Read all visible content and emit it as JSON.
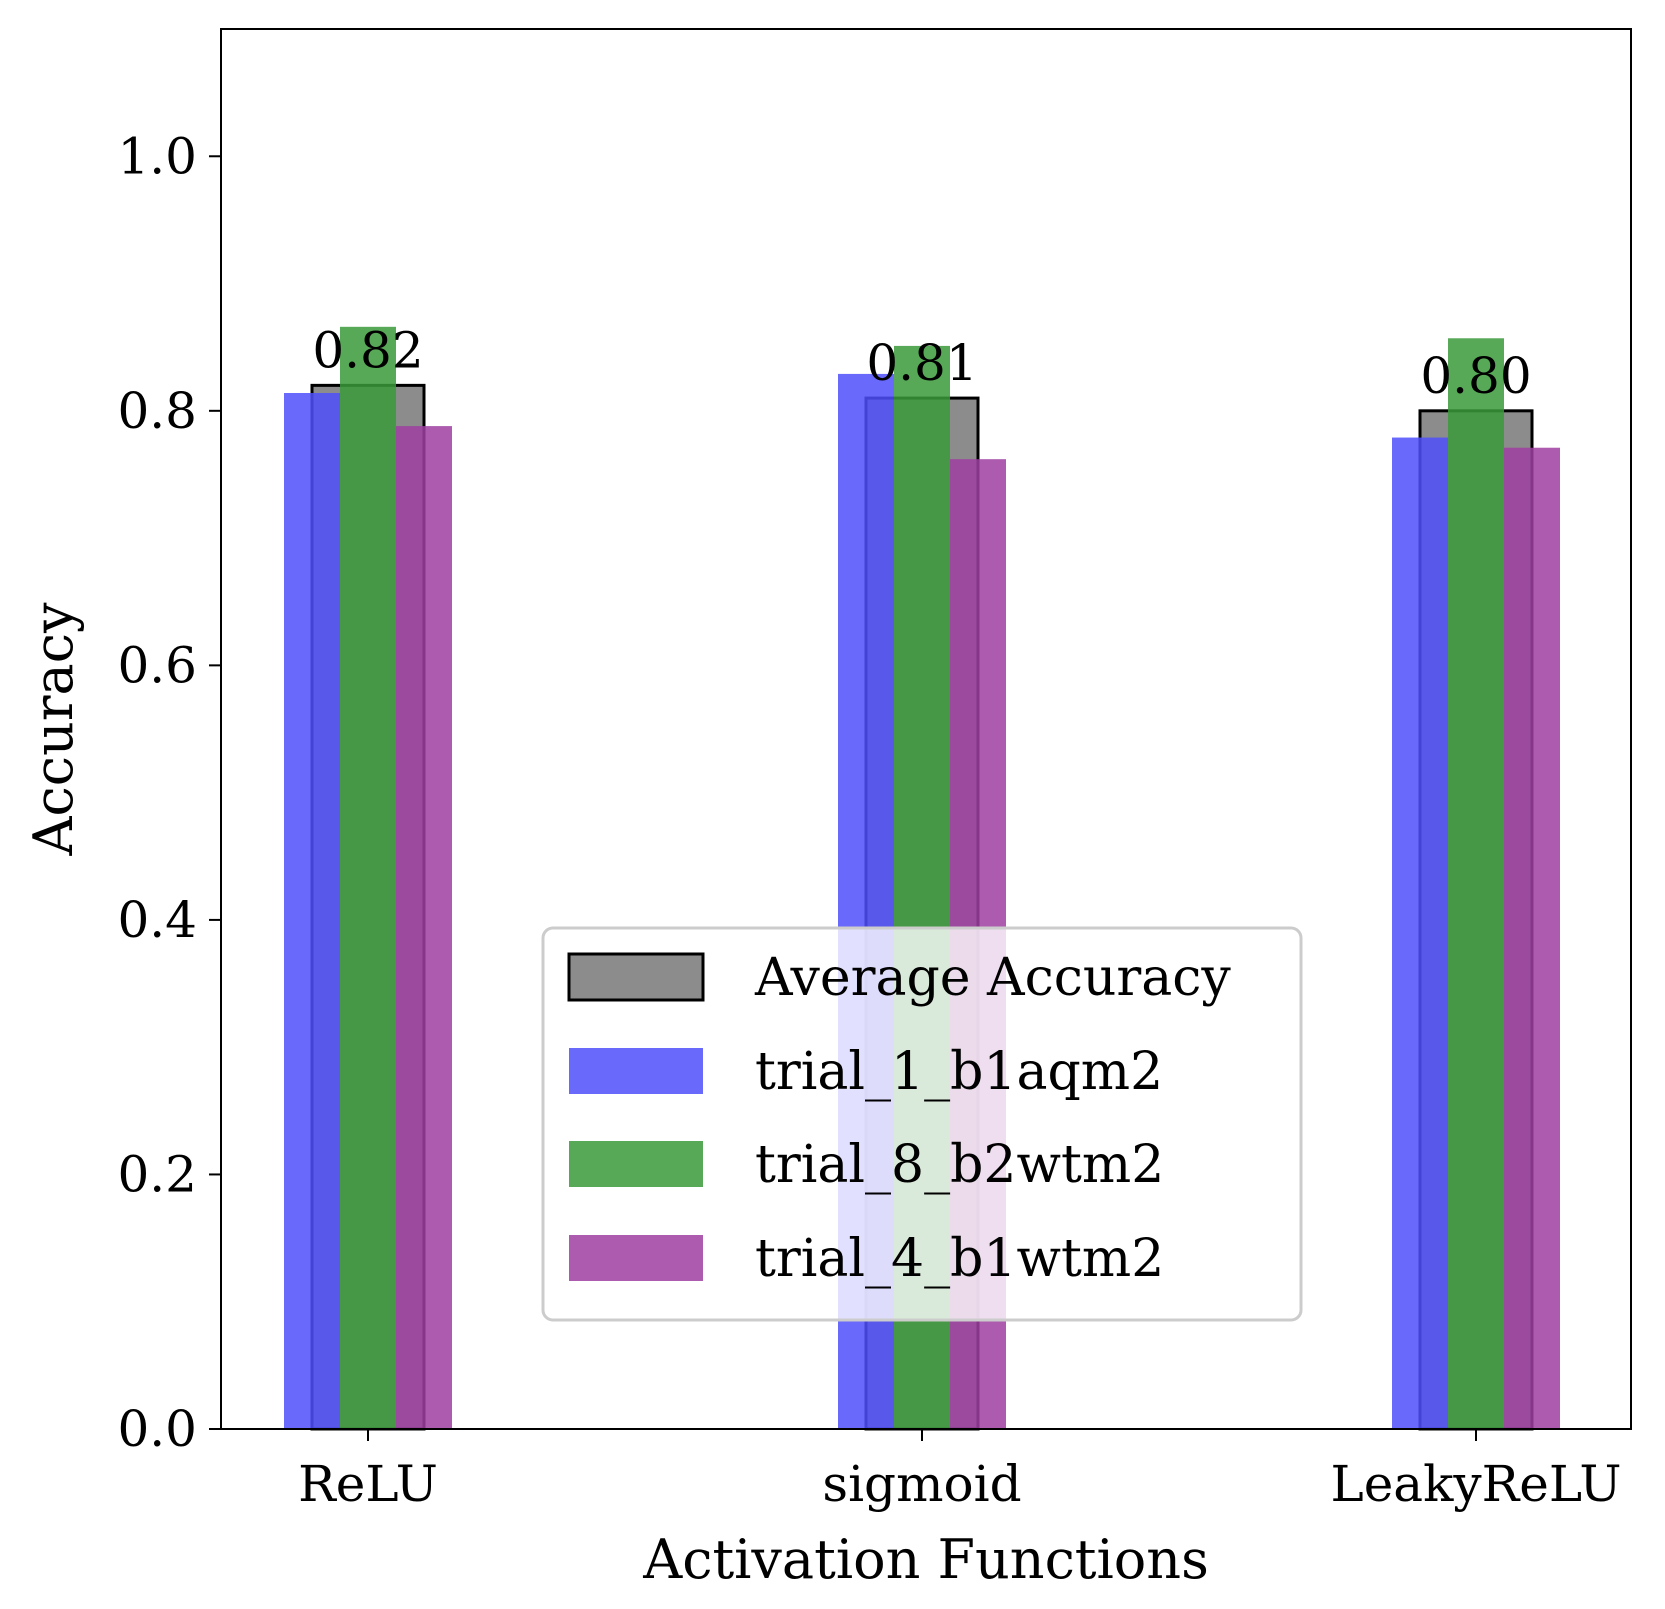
{
  "chart_data": {
    "type": "bar",
    "xlabel": "Activation Functions",
    "ylabel": "Accuracy",
    "categories": [
      "ReLU",
      "sigmoid",
      "LeakyReLU"
    ],
    "ylim": [
      0,
      1.1
    ],
    "yticks": [
      0.0,
      0.2,
      0.4,
      0.6,
      0.8,
      1.0
    ],
    "ytick_labels": [
      "0.0",
      "0.2",
      "0.4",
      "0.6",
      "0.8",
      "1.0"
    ],
    "grid": false,
    "legend_position": "lower-center",
    "average": {
      "name": "Average Accuracy",
      "color": "#808080",
      "values": [
        0.82,
        0.81,
        0.8
      ],
      "labels": [
        "0.82",
        "0.81",
        "0.80"
      ]
    },
    "series": [
      {
        "name": "trial_1_b1aqm2",
        "color": "#4f4ffc",
        "values": [
          0.814,
          0.829,
          0.779
        ]
      },
      {
        "name": "trial_8_b2wtm2",
        "color": "#3a9a3a",
        "values": [
          0.866,
          0.851,
          0.857
        ]
      },
      {
        "name": "trial_4_b1wtm2",
        "color": "#9e3ea0",
        "values": [
          0.788,
          0.762,
          0.771
        ]
      }
    ]
  }
}
